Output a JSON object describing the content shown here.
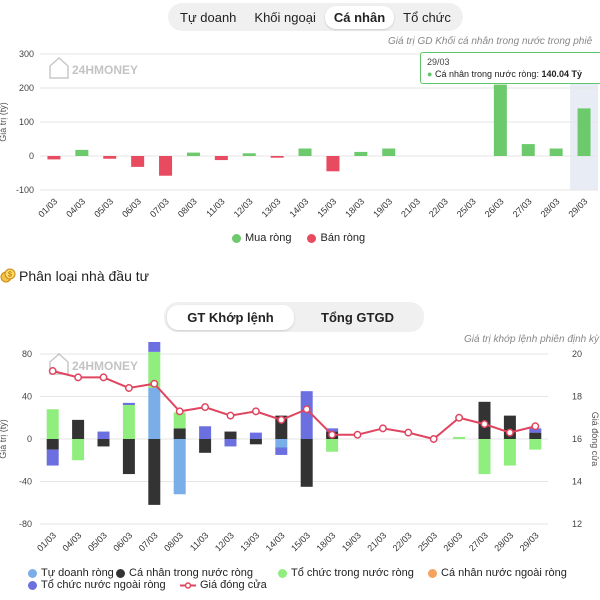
{
  "top_tabs": [
    "Tự doanh",
    "Khối ngoại",
    "Cá nhân",
    "Tổ chức"
  ],
  "top_active": 2,
  "chart1_subtitle": "Giá trị GD Khối cá nhân trong nước trong phiê",
  "watermark": "24HMONEY",
  "tooltip": {
    "date": "29/03",
    "series": "Cá nhân trong nước ròng:",
    "value": "140.04 Tỷ"
  },
  "legend1": [
    {
      "label": "Mua ròng",
      "color": "#6cc96c"
    },
    {
      "label": "Bán ròng",
      "color": "#e84a5f"
    }
  ],
  "section_title": "Phân loại nhà đầu tư",
  "bottom_tabs": [
    "GT Khớp lệnh",
    "Tổng GTGD"
  ],
  "bottom_active": 0,
  "chart2_subtitle": "Giá trị khớp lệnh phiên định kỳ",
  "legend2": [
    {
      "label": "Tự doanh ròng",
      "color": "#7aaee8",
      "kind": "dot"
    },
    {
      "label": "Cá nhân trong nước ròng",
      "color": "#333333",
      "kind": "dot"
    },
    {
      "label": "Tổ chức trong nước ròng",
      "color": "#90ee7e",
      "kind": "dot"
    },
    {
      "label": "Cá nhân nước ngoài ròng",
      "color": "#f4a460",
      "kind": "dot"
    },
    {
      "label": "Tổ chức nước ngoài ròng",
      "color": "#6b6fe0",
      "kind": "dot"
    },
    {
      "label": "Giá đóng cửa",
      "color": "#e04560",
      "kind": "line"
    }
  ],
  "chart_data": [
    {
      "type": "bar",
      "ylabel": "Giá trị (tỷ)",
      "ylim": [
        -100,
        300
      ],
      "yticks": [
        300,
        200,
        100,
        0,
        -100
      ],
      "categories": [
        "01/03",
        "04/03",
        "05/03",
        "06/03",
        "07/03",
        "08/03",
        "11/03",
        "12/03",
        "13/03",
        "14/03",
        "15/03",
        "18/03",
        "19/03",
        "21/03",
        "22/03",
        "25/03",
        "26/03",
        "27/03",
        "28/03",
        "29/03"
      ],
      "values": [
        -10,
        18,
        -8,
        -32,
        -58,
        10,
        -12,
        8,
        -5,
        22,
        -45,
        12,
        22,
        0,
        0,
        0,
        210,
        35,
        22,
        140.04
      ],
      "highlight": "29/03",
      "grid": true
    },
    {
      "type": "bar",
      "ylabel": "Giá trị (tỷ)",
      "y2label": "Giá đóng cửa",
      "ylim": [
        -80,
        80
      ],
      "yticks": [
        80,
        40,
        0,
        -40,
        -80
      ],
      "y2lim": [
        12,
        20
      ],
      "y2ticks": [
        20,
        18,
        16,
        14,
        12
      ],
      "stacked": true,
      "categories": [
        "01/03",
        "04/03",
        "05/03",
        "06/03",
        "07/03",
        "08/03",
        "11/03",
        "12/03",
        "13/03",
        "14/03",
        "15/03",
        "18/03",
        "19/03",
        "21/03",
        "22/03",
        "25/03",
        "26/03",
        "27/03",
        "28/03",
        "29/03"
      ],
      "series": [
        {
          "name": "Tự doanh ròng",
          "color": "#7aaee8",
          "values": [
            0,
            0,
            0,
            0,
            48,
            -52,
            0,
            0,
            0,
            -8,
            0,
            0,
            0,
            0,
            0,
            0,
            0,
            0,
            0,
            0
          ]
        },
        {
          "name": "Cá nhân trong nước ròng",
          "color": "#333333",
          "values": [
            -10,
            18,
            -7,
            -33,
            -62,
            10,
            -13,
            7,
            -5,
            22,
            -45,
            7,
            0,
            0,
            0,
            0,
            0,
            35,
            22,
            6
          ]
        },
        {
          "name": "Tổ chức trong nước ròng",
          "color": "#90ee7e",
          "values": [
            28,
            -20,
            0,
            32,
            34,
            15,
            0,
            0,
            0,
            0,
            0,
            -12,
            0,
            0,
            0,
            0,
            2,
            -33,
            -25,
            -10
          ]
        },
        {
          "name": "Cá nhân nước ngoài ròng",
          "color": "#f4a460",
          "values": [
            0,
            0,
            0,
            0,
            0,
            0,
            0,
            0,
            0,
            0,
            0,
            0,
            0,
            0,
            0,
            0,
            0,
            0,
            0,
            0
          ]
        },
        {
          "name": "Tổ chức nước ngoài ròng",
          "color": "#6b6fe0",
          "values": [
            -15,
            0,
            7,
            2,
            14,
            0,
            12,
            -7,
            6,
            -7,
            45,
            3,
            0,
            0,
            0,
            0,
            0,
            0,
            0,
            4
          ]
        }
      ],
      "line": {
        "name": "Giá đóng cửa",
        "color": "#e04560",
        "values": [
          19.2,
          18.9,
          18.9,
          18.4,
          18.6,
          17.3,
          17.5,
          17.1,
          17.3,
          16.9,
          17.4,
          16.2,
          16.2,
          16.5,
          16.3,
          16.0,
          17.0,
          16.7,
          16.3,
          16.6
        ]
      },
      "grid": true
    }
  ]
}
